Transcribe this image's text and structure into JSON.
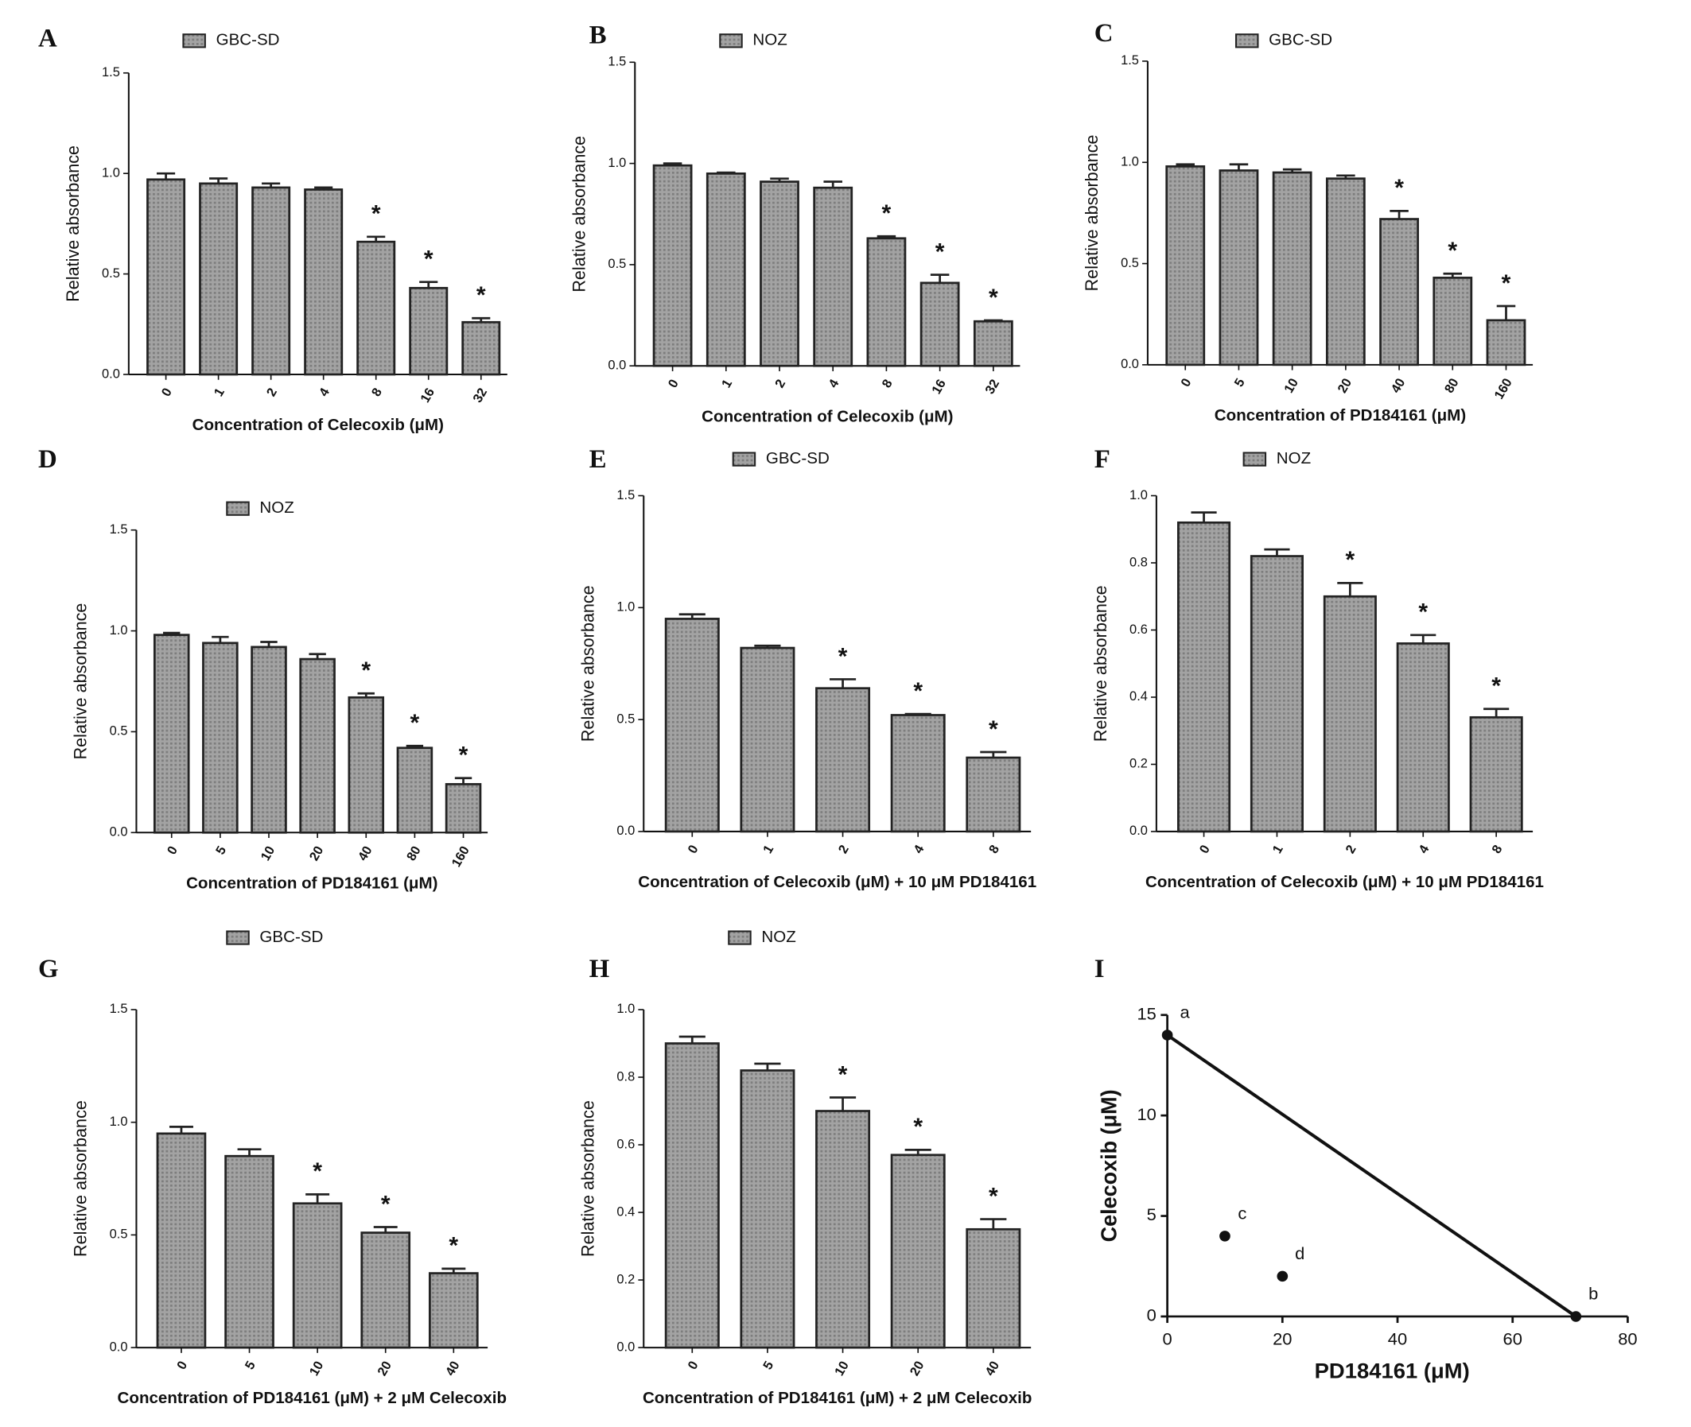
{
  "chart_data": [
    {
      "type": "bar",
      "panel": "A",
      "legend": "GBC-SD",
      "ylabel": "Relative absorbance",
      "xlabel": "Concentration of Celecoxib (μM)",
      "categories": [
        "0",
        "1",
        "2",
        "4",
        "8",
        "16",
        "32"
      ],
      "values": [
        0.97,
        0.95,
        0.93,
        0.92,
        0.66,
        0.43,
        0.26
      ],
      "errors": [
        0.03,
        0.025,
        0.02,
        0.01,
        0.025,
        0.03,
        0.02
      ],
      "significance": [
        null,
        null,
        null,
        null,
        "*",
        "*",
        "*"
      ],
      "ylim": [
        0,
        1.5
      ],
      "yticks": [
        {
          "value": 0,
          "label": "0.0"
        },
        {
          "value": 0.5,
          "label": "0.5"
        },
        {
          "value": 1,
          "label": "1.0"
        },
        {
          "value": 1.5,
          "label": "1.5"
        }
      ],
      "color": "#9c9c9c"
    },
    {
      "type": "bar",
      "panel": "B",
      "legend": "NOZ",
      "ylabel": "Relative absorbance",
      "xlabel": "Concentration of Celecoxib (μM)",
      "categories": [
        "0",
        "1",
        "2",
        "4",
        "8",
        "16",
        "32"
      ],
      "values": [
        0.99,
        0.95,
        0.91,
        0.88,
        0.63,
        0.41,
        0.22
      ],
      "errors": [
        0.01,
        0.005,
        0.015,
        0.03,
        0.01,
        0.04,
        0.005
      ],
      "significance": [
        null,
        null,
        null,
        null,
        "*",
        "*",
        "*"
      ],
      "ylim": [
        0,
        1.5
      ],
      "yticks": [
        {
          "value": 0,
          "label": "0.0"
        },
        {
          "value": 0.5,
          "label": "0.5"
        },
        {
          "value": 1,
          "label": "1.0"
        },
        {
          "value": 1.5,
          "label": "1.5"
        }
      ],
      "color": "#9c9c9c"
    },
    {
      "type": "bar",
      "panel": "C",
      "legend": "GBC-SD",
      "ylabel": "Relative absorbance",
      "xlabel": "Concentration of PD184161 (μM)",
      "categories": [
        "0",
        "5",
        "10",
        "20",
        "40",
        "80",
        "160"
      ],
      "values": [
        0.98,
        0.96,
        0.95,
        0.92,
        0.72,
        0.43,
        0.22
      ],
      "errors": [
        0.01,
        0.03,
        0.015,
        0.015,
        0.04,
        0.02,
        0.07
      ],
      "significance": [
        null,
        null,
        null,
        null,
        "*",
        "*",
        "*"
      ],
      "ylim": [
        0,
        1.5
      ],
      "yticks": [
        {
          "value": 0,
          "label": "0.0"
        },
        {
          "value": 0.5,
          "label": "0.5"
        },
        {
          "value": 1,
          "label": "1.0"
        },
        {
          "value": 1.5,
          "label": "1.5"
        }
      ],
      "color": "#9c9c9c"
    },
    {
      "type": "bar",
      "panel": "D",
      "legend": "NOZ",
      "ylabel": "Relative absorbance",
      "xlabel": "Concentration of PD184161 (μM)",
      "categories": [
        "0",
        "5",
        "10",
        "20",
        "40",
        "80",
        "160"
      ],
      "values": [
        0.98,
        0.94,
        0.92,
        0.86,
        0.67,
        0.42,
        0.24
      ],
      "errors": [
        0.01,
        0.03,
        0.025,
        0.025,
        0.02,
        0.01,
        0.03
      ],
      "significance": [
        null,
        null,
        null,
        null,
        "*",
        "*",
        "*"
      ],
      "ylim": [
        0,
        1.5
      ],
      "yticks": [
        {
          "value": 0,
          "label": "0.0"
        },
        {
          "value": 0.5,
          "label": "0.5"
        },
        {
          "value": 1,
          "label": "1.0"
        },
        {
          "value": 1.5,
          "label": "1.5"
        }
      ],
      "color": "#9c9c9c"
    },
    {
      "type": "bar",
      "panel": "E",
      "legend": "GBC-SD",
      "ylabel": "Relative absorbance",
      "xlabel": "Concentration of Celecoxib (μM) + 10 μM PD184161",
      "categories": [
        "0",
        "1",
        "2",
        "4",
        "8"
      ],
      "values": [
        0.95,
        0.82,
        0.64,
        0.52,
        0.33
      ],
      "errors": [
        0.02,
        0.01,
        0.04,
        0.005,
        0.025
      ],
      "significance": [
        null,
        null,
        "*",
        "*",
        "*"
      ],
      "ylim": [
        0,
        1.5
      ],
      "yticks": [
        {
          "value": 0,
          "label": "0.0"
        },
        {
          "value": 0.5,
          "label": "0.5"
        },
        {
          "value": 1,
          "label": "1.0"
        },
        {
          "value": 1.5,
          "label": "1.5"
        }
      ],
      "color": "#9c9c9c"
    },
    {
      "type": "bar",
      "panel": "F",
      "legend": "NOZ",
      "ylabel": "Relative absorbance",
      "xlabel": "Concentration of Celecoxib (μM) + 10 μM PD184161",
      "categories": [
        "0",
        "1",
        "2",
        "4",
        "8"
      ],
      "values": [
        0.92,
        0.82,
        0.7,
        0.56,
        0.34
      ],
      "errors": [
        0.03,
        0.02,
        0.04,
        0.025,
        0.025
      ],
      "significance": [
        null,
        null,
        "*",
        "*",
        "*"
      ],
      "ylim": [
        0,
        1
      ],
      "yticks": [
        {
          "value": 0,
          "label": "0.0"
        },
        {
          "value": 0.2,
          "label": "0.2"
        },
        {
          "value": 0.4,
          "label": "0.4"
        },
        {
          "value": 0.6,
          "label": "0.6"
        },
        {
          "value": 0.8,
          "label": "0.8"
        },
        {
          "value": 1,
          "label": "1.0"
        }
      ],
      "color": "#9c9c9c"
    },
    {
      "type": "bar",
      "panel": "G",
      "legend": "GBC-SD",
      "ylabel": "Relative absorbance",
      "xlabel": "Concentration of PD184161 (μM) + 2 μM Celecoxib",
      "categories": [
        "0",
        "5",
        "10",
        "20",
        "40"
      ],
      "values": [
        0.95,
        0.85,
        0.64,
        0.51,
        0.33
      ],
      "errors": [
        0.03,
        0.03,
        0.04,
        0.025,
        0.02
      ],
      "significance": [
        null,
        null,
        "*",
        "*",
        "*"
      ],
      "ylim": [
        0,
        1.5
      ],
      "yticks": [
        {
          "value": 0,
          "label": "0.0"
        },
        {
          "value": 0.5,
          "label": "0.5"
        },
        {
          "value": 1,
          "label": "1.0"
        },
        {
          "value": 1.5,
          "label": "1.5"
        }
      ],
      "color": "#9c9c9c"
    },
    {
      "type": "bar",
      "panel": "H",
      "legend": "NOZ",
      "ylabel": "Relative absorbance",
      "xlabel": "Concentration of PD184161 (μM) + 2 μM Celecoxib",
      "categories": [
        "0",
        "5",
        "10",
        "20",
        "40"
      ],
      "values": [
        0.9,
        0.82,
        0.7,
        0.57,
        0.35
      ],
      "errors": [
        0.02,
        0.02,
        0.04,
        0.015,
        0.03
      ],
      "significance": [
        null,
        null,
        "*",
        "*",
        "*"
      ],
      "ylim": [
        0,
        1
      ],
      "yticks": [
        {
          "value": 0,
          "label": "0.0"
        },
        {
          "value": 0.2,
          "label": "0.2"
        },
        {
          "value": 0.4,
          "label": "0.4"
        },
        {
          "value": 0.6,
          "label": "0.6"
        },
        {
          "value": 0.8,
          "label": "0.8"
        },
        {
          "value": 1,
          "label": "1.0"
        }
      ],
      "color": "#9c9c9c"
    },
    {
      "type": "scatter",
      "panel": "I",
      "ylabel": "Celecoxib (μM)",
      "xlabel": "PD184161 (μM)",
      "x": [
        0,
        71,
        10,
        20
      ],
      "y": [
        14,
        0,
        4,
        2
      ],
      "point_labels": [
        "a",
        "b",
        "c",
        "d"
      ],
      "xlim": [
        0,
        80
      ],
      "xticks": [
        0,
        20,
        40,
        60,
        80
      ],
      "ylim": [
        0,
        15
      ],
      "yticks": [
        0,
        5,
        10,
        15
      ],
      "color": "#111111"
    }
  ]
}
